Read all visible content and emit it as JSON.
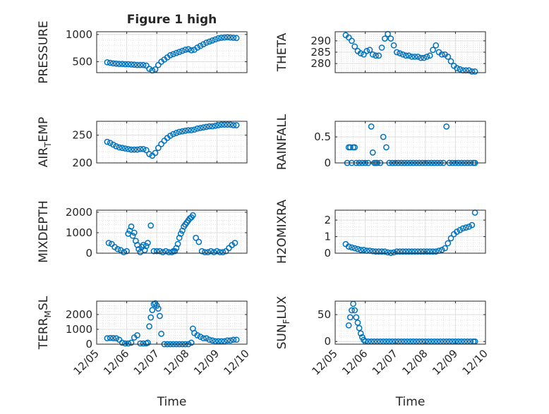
{
  "figure": {
    "title": "Figure 1 high",
    "accent": "#0072BD",
    "xtick_labels": [
      "12/05",
      "12/06",
      "12/07",
      "12/08",
      "12/09",
      "12/10"
    ],
    "xlabel": "Time"
  },
  "chart_data": [
    {
      "type": "scatter",
      "title": "Figure 1 high",
      "ylabel": "PRESSURE",
      "xlabel": "",
      "xlim": [
        0,
        5
      ],
      "ylim": [
        300,
        1050
      ],
      "yticks": [
        500,
        1000
      ],
      "grid": true,
      "x": [
        0.35,
        0.45,
        0.55,
        0.65,
        0.75,
        0.85,
        0.95,
        1.05,
        1.15,
        1.25,
        1.35,
        1.45,
        1.55,
        1.65,
        1.75,
        1.85,
        1.95,
        2.05,
        2.15,
        2.25,
        2.35,
        2.45,
        2.55,
        2.65,
        2.75,
        2.85,
        2.95,
        3.05,
        3.15,
        3.25,
        3.35,
        3.45,
        3.55,
        3.65,
        3.75,
        3.85,
        3.95,
        4.05,
        4.15,
        4.25,
        4.35,
        4.45,
        4.55,
        4.65
      ],
      "y": [
        490,
        480,
        470,
        465,
        460,
        460,
        455,
        455,
        450,
        445,
        440,
        440,
        440,
        430,
        370,
        340,
        360,
        440,
        500,
        540,
        580,
        620,
        640,
        660,
        680,
        700,
        720,
        730,
        710,
        720,
        760,
        790,
        820,
        850,
        870,
        890,
        910,
        930,
        940,
        945,
        950,
        945,
        940,
        935
      ]
    },
    {
      "type": "scatter",
      "ylabel": "THETA",
      "xlabel": "",
      "xlim": [
        0,
        5
      ],
      "ylim": [
        276,
        294
      ],
      "yticks": [
        280,
        285,
        290
      ],
      "grid": true,
      "x": [
        0.35,
        0.45,
        0.55,
        0.65,
        0.75,
        0.85,
        0.95,
        1.05,
        1.15,
        1.25,
        1.35,
        1.45,
        1.55,
        1.65,
        1.75,
        1.85,
        1.95,
        2.05,
        2.15,
        2.25,
        2.35,
        2.45,
        2.55,
        2.65,
        2.75,
        2.85,
        2.95,
        3.05,
        3.15,
        3.25,
        3.35,
        3.45,
        3.55,
        3.65,
        3.75,
        3.85,
        3.95,
        4.05,
        4.15,
        4.25,
        4.35,
        4.45,
        4.55,
        4.65
      ],
      "y": [
        292.5,
        291.5,
        290,
        287.5,
        285.5,
        284.5,
        284,
        285.5,
        286,
        284,
        283.5,
        283.5,
        287,
        291,
        293,
        291,
        288,
        285,
        284.5,
        284,
        283.5,
        283.5,
        283,
        283,
        283,
        282.5,
        282.5,
        283,
        283.5,
        286,
        288,
        285,
        284,
        284,
        283,
        281,
        279,
        278,
        277.5,
        277,
        277,
        277,
        276.5,
        276.5
      ]
    },
    {
      "type": "scatter",
      "ylabel": "AIR_TEMP",
      "xlabel": "",
      "xlim": [
        0,
        5
      ],
      "ylim": [
        200,
        275
      ],
      "yticks": [
        200,
        250
      ],
      "grid": true,
      "x": [
        0.35,
        0.45,
        0.55,
        0.65,
        0.75,
        0.85,
        0.95,
        1.05,
        1.15,
        1.25,
        1.35,
        1.45,
        1.55,
        1.65,
        1.75,
        1.85,
        1.95,
        2.05,
        2.15,
        2.25,
        2.35,
        2.45,
        2.55,
        2.65,
        2.75,
        2.85,
        2.95,
        3.05,
        3.15,
        3.25,
        3.35,
        3.45,
        3.55,
        3.65,
        3.75,
        3.85,
        3.95,
        4.05,
        4.15,
        4.25,
        4.35,
        4.45,
        4.55,
        4.65
      ],
      "y": [
        238,
        236,
        233,
        230,
        228,
        227,
        226,
        225,
        224,
        224,
        224,
        225,
        225,
        223,
        216,
        213,
        218,
        227,
        234,
        240,
        245,
        249,
        252,
        254,
        256,
        257,
        258,
        259,
        259,
        260,
        262,
        263,
        264,
        265,
        266,
        266,
        267,
        268,
        269,
        269,
        269,
        269,
        268,
        268
      ]
    },
    {
      "type": "scatter",
      "ylabel": "RAINFALL",
      "xlabel": "",
      "xlim": [
        0,
        5
      ],
      "ylim": [
        0,
        0.8
      ],
      "yticks": [
        0,
        0.5
      ],
      "grid": true,
      "x": [
        0.4,
        0.45,
        0.5,
        0.55,
        0.6,
        0.65,
        0.7,
        0.8,
        0.9,
        1.0,
        1.1,
        1.2,
        1.25,
        1.3,
        1.35,
        1.4,
        1.5,
        1.6,
        1.7,
        1.8,
        1.9,
        2.0,
        2.1,
        2.2,
        2.3,
        2.4,
        2.5,
        2.6,
        2.7,
        2.8,
        2.9,
        3.0,
        3.1,
        3.2,
        3.3,
        3.4,
        3.5,
        3.6,
        3.7,
        3.8,
        3.9,
        4.0,
        4.1,
        4.2,
        4.3,
        4.4,
        4.5,
        4.6,
        4.65
      ],
      "y": [
        0,
        0.3,
        0.3,
        0,
        0.3,
        0.3,
        0,
        0,
        0,
        0,
        0,
        0.7,
        0.2,
        0,
        0,
        0,
        0,
        0.5,
        0.3,
        0,
        0,
        0,
        0,
        0,
        0,
        0,
        0,
        0,
        0,
        0,
        0,
        0,
        0,
        0,
        0,
        0,
        0,
        0,
        0.7,
        0,
        0,
        0,
        0,
        0,
        0,
        0,
        0,
        0,
        0
      ]
    },
    {
      "type": "scatter",
      "ylabel": "MIXDEPTH",
      "xlabel": "",
      "xlim": [
        0,
        5
      ],
      "ylim": [
        0,
        2100
      ],
      "yticks": [
        0,
        1000,
        2000
      ],
      "grid": true,
      "x": [
        0.4,
        0.5,
        0.6,
        0.7,
        0.8,
        0.9,
        1.0,
        1.05,
        1.1,
        1.15,
        1.2,
        1.25,
        1.3,
        1.35,
        1.4,
        1.45,
        1.5,
        1.55,
        1.6,
        1.65,
        1.7,
        1.8,
        1.9,
        2.0,
        2.1,
        2.2,
        2.3,
        2.4,
        2.5,
        2.55,
        2.6,
        2.65,
        2.7,
        2.75,
        2.8,
        2.85,
        2.9,
        2.95,
        3.0,
        3.05,
        3.1,
        3.15,
        3.2,
        3.3,
        3.4,
        3.5,
        3.6,
        3.7,
        3.8,
        3.9,
        4.0,
        4.1,
        4.2,
        4.3,
        4.4,
        4.5,
        4.6
      ],
      "y": [
        500,
        450,
        300,
        200,
        150,
        50,
        100,
        950,
        1100,
        1300,
        850,
        1000,
        600,
        400,
        200,
        50,
        300,
        400,
        150,
        350,
        500,
        1350,
        100,
        100,
        100,
        50,
        100,
        50,
        50,
        100,
        100,
        250,
        450,
        750,
        950,
        1100,
        1300,
        1400,
        1500,
        1600,
        1700,
        1750,
        1850,
        750,
        550,
        100,
        50,
        50,
        100,
        50,
        100,
        50,
        50,
        100,
        250,
        400,
        500
      ]
    },
    {
      "type": "scatter",
      "ylabel": "H2OMIXRA",
      "xlabel": "",
      "xlim": [
        0,
        5
      ],
      "ylim": [
        0,
        2.6
      ],
      "yticks": [
        0,
        1,
        2
      ],
      "grid": true,
      "x": [
        0.35,
        0.45,
        0.55,
        0.65,
        0.75,
        0.85,
        0.95,
        1.05,
        1.15,
        1.25,
        1.35,
        1.45,
        1.55,
        1.65,
        1.75,
        1.85,
        1.95,
        2.05,
        2.15,
        2.25,
        2.35,
        2.45,
        2.55,
        2.65,
        2.75,
        2.85,
        2.95,
        3.05,
        3.15,
        3.25,
        3.35,
        3.45,
        3.55,
        3.65,
        3.75,
        3.85,
        3.95,
        4.05,
        4.15,
        4.25,
        4.35,
        4.45,
        4.55,
        4.65
      ],
      "y": [
        0.55,
        0.4,
        0.35,
        0.3,
        0.25,
        0.2,
        0.2,
        0.15,
        0.15,
        0.12,
        0.1,
        0.1,
        0.1,
        0.1,
        0.05,
        0.02,
        0.05,
        0.1,
        0.1,
        0.1,
        0.1,
        0.1,
        0.1,
        0.1,
        0.1,
        0.1,
        0.1,
        0.1,
        0.1,
        0.1,
        0.1,
        0.15,
        0.2,
        0.3,
        0.6,
        0.9,
        1.15,
        1.3,
        1.4,
        1.5,
        1.55,
        1.6,
        1.7,
        2.45
      ]
    },
    {
      "type": "scatter",
      "ylabel": "TERR_MSL",
      "xlabel": "",
      "xlim": [
        0,
        5
      ],
      "ylim": [
        0,
        2900
      ],
      "yticks": [
        0,
        1000,
        2000
      ],
      "grid": true,
      "x": [
        0.35,
        0.45,
        0.55,
        0.65,
        0.75,
        0.85,
        0.95,
        1.05,
        1.15,
        1.25,
        1.35,
        1.45,
        1.55,
        1.65,
        1.7,
        1.75,
        1.8,
        1.85,
        1.9,
        1.95,
        2.0,
        2.05,
        2.1,
        2.15,
        2.25,
        2.35,
        2.45,
        2.55,
        2.65,
        2.75,
        2.85,
        2.95,
        3.05,
        3.15,
        3.2,
        3.25,
        3.35,
        3.45,
        3.55,
        3.65,
        3.75,
        3.85,
        3.95,
        4.05,
        4.15,
        4.25,
        4.35,
        4.45,
        4.55,
        4.65
      ],
      "y": [
        400,
        420,
        410,
        400,
        300,
        100,
        50,
        50,
        100,
        450,
        600,
        50,
        50,
        50,
        100,
        1200,
        1800,
        2300,
        2700,
        2750,
        2600,
        2400,
        1900,
        700,
        0,
        0,
        0,
        0,
        0,
        0,
        0,
        0,
        0,
        100,
        1050,
        750,
        600,
        500,
        400,
        400,
        300,
        250,
        200,
        200,
        200,
        200,
        250,
        250,
        300,
        300
      ]
    },
    {
      "type": "scatter",
      "ylabel": "SUN_FLUX",
      "xlabel": "",
      "xlim": [
        0,
        5
      ],
      "ylim": [
        -5,
        75
      ],
      "yticks": [
        0,
        50
      ],
      "grid": true,
      "x": [
        0.45,
        0.5,
        0.55,
        0.6,
        0.65,
        0.7,
        0.75,
        0.8,
        0.85,
        0.9,
        0.95,
        1.0,
        1.1,
        1.2,
        1.3,
        1.4,
        1.5,
        1.6,
        1.7,
        1.8,
        1.9,
        2.0,
        2.1,
        2.2,
        2.3,
        2.4,
        2.5,
        2.6,
        2.7,
        2.8,
        2.9,
        3.0,
        3.1,
        3.2,
        3.3,
        3.4,
        3.5,
        3.6,
        3.7,
        3.8,
        3.9,
        4.0,
        4.1,
        4.2,
        4.3,
        4.4,
        4.5,
        4.6,
        4.65
      ],
      "y": [
        30,
        45,
        58,
        70,
        58,
        45,
        35,
        25,
        15,
        8,
        3,
        0,
        0,
        0,
        0,
        0,
        0,
        0,
        0,
        0,
        0,
        0,
        0,
        0,
        0,
        0,
        0,
        0,
        0,
        0,
        0,
        0,
        0,
        0,
        0,
        0,
        0,
        0,
        0,
        0,
        0,
        0,
        0,
        0,
        0,
        0,
        0,
        0,
        0
      ]
    }
  ]
}
